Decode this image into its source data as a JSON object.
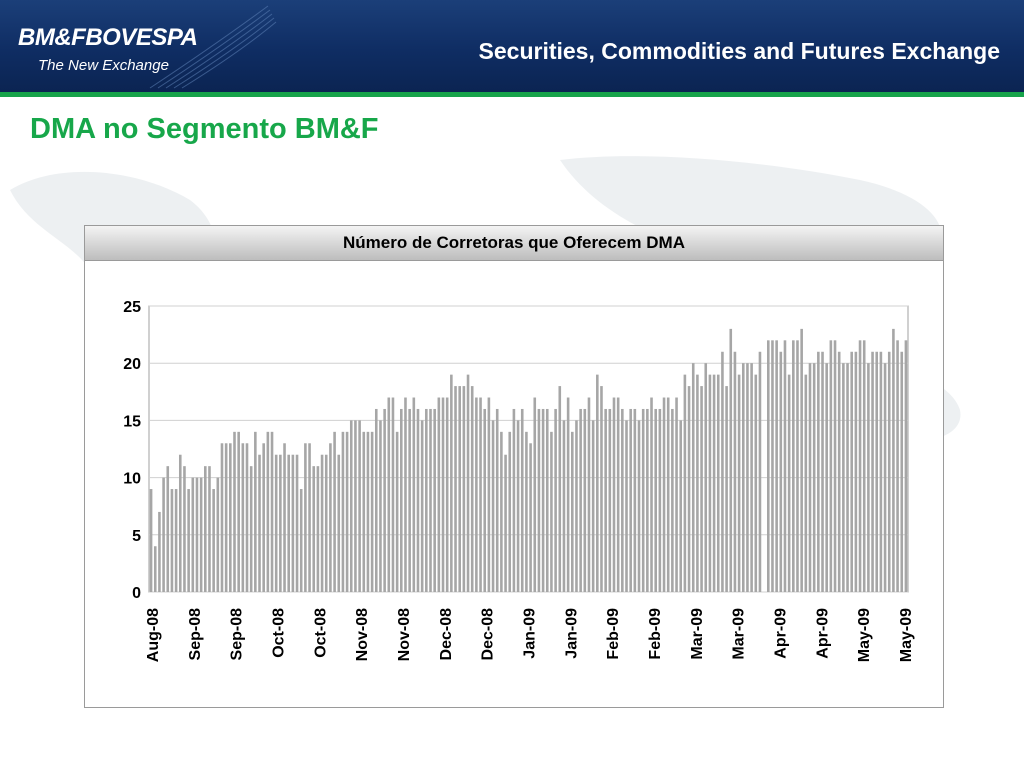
{
  "header": {
    "logo_text": "BM&FBOVESPA",
    "logo_tagline": "The New Exchange",
    "title": "Securities, Commodities and Futures Exchange"
  },
  "slide": {
    "title": "DMA no Segmento BM&F"
  },
  "colors": {
    "header_blue": "#0f2d63",
    "accent_green": "#16a34a",
    "bar_fill": "#a6a6a6"
  },
  "chart_data": {
    "type": "bar",
    "title": "Número de Corretoras que Oferecem DMA",
    "xlabel": "",
    "ylabel": "",
    "ylim": [
      0,
      25
    ],
    "yticks": [
      0,
      5,
      10,
      15,
      20,
      25
    ],
    "grid": "horizontal",
    "legend": "none",
    "x_tick_labels": [
      "Aug-08",
      "Sep-08",
      "Sep-08",
      "Oct-08",
      "Oct-08",
      "Nov-08",
      "Nov-08",
      "Dec-08",
      "Dec-08",
      "Jan-09",
      "Jan-09",
      "Feb-09",
      "Feb-09",
      "Mar-09",
      "Mar-09",
      "Apr-09",
      "Apr-09",
      "May-09",
      "May-09"
    ],
    "values": [
      9,
      4,
      7,
      10,
      11,
      9,
      9,
      12,
      11,
      9,
      10,
      10,
      10,
      11,
      11,
      9,
      10,
      13,
      13,
      13,
      14,
      14,
      13,
      13,
      11,
      14,
      12,
      13,
      14,
      14,
      12,
      12,
      13,
      12,
      12,
      12,
      9,
      13,
      13,
      11,
      11,
      12,
      12,
      13,
      14,
      12,
      14,
      14,
      15,
      15,
      15,
      14,
      14,
      14,
      16,
      15,
      16,
      17,
      17,
      14,
      16,
      17,
      16,
      17,
      16,
      15,
      16,
      16,
      16,
      17,
      17,
      17,
      19,
      18,
      18,
      18,
      19,
      18,
      17,
      17,
      16,
      17,
      15,
      16,
      14,
      12,
      14,
      16,
      15,
      16,
      14,
      13,
      17,
      16,
      16,
      16,
      14,
      16,
      18,
      15,
      17,
      14,
      15,
      16,
      16,
      17,
      15,
      19,
      18,
      16,
      16,
      17,
      17,
      16,
      15,
      16,
      16,
      15,
      16,
      16,
      17,
      16,
      16,
      17,
      17,
      16,
      17,
      15,
      19,
      18,
      20,
      19,
      18,
      20,
      19,
      19,
      19,
      21,
      18,
      23,
      21,
      19,
      20,
      20,
      20,
      19,
      21,
      0,
      22,
      22,
      22,
      21,
      22,
      19,
      22,
      22,
      23,
      19,
      20,
      20,
      21,
      21,
      20,
      22,
      22,
      21,
      20,
      20,
      21,
      21,
      22,
      22,
      20,
      21,
      21,
      21,
      20,
      21,
      23,
      22,
      21,
      22
    ]
  }
}
